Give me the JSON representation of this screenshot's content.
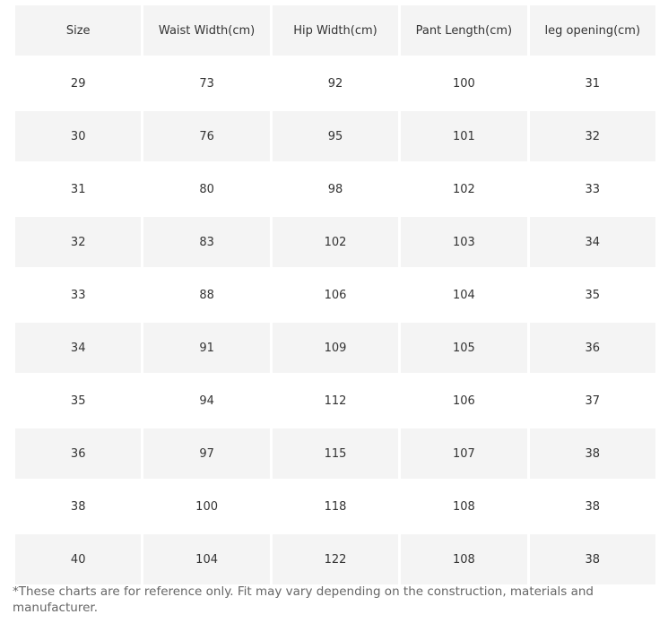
{
  "table": {
    "headers": [
      "Size",
      "Waist Width(cm)",
      "Hip Width(cm)",
      "Pant Length(cm)",
      "leg opening(cm)"
    ],
    "rows": [
      [
        "29",
        "73",
        "92",
        "100",
        "31"
      ],
      [
        "30",
        "76",
        "95",
        "101",
        "32"
      ],
      [
        "31",
        "80",
        "98",
        "102",
        "33"
      ],
      [
        "32",
        "83",
        "102",
        "103",
        "34"
      ],
      [
        "33",
        "88",
        "106",
        "104",
        "35"
      ],
      [
        "34",
        "91",
        "109",
        "105",
        "36"
      ],
      [
        "35",
        "94",
        "112",
        "106",
        "37"
      ],
      [
        "36",
        "97",
        "115",
        "107",
        "38"
      ],
      [
        "38",
        "100",
        "118",
        "108",
        "38"
      ],
      [
        "40",
        "104",
        "122",
        "108",
        "38"
      ]
    ]
  },
  "footnote": "*These charts are for reference only. Fit may vary depending on the construction, materials and manufacturer.",
  "colors": {
    "shaded_row": "#f4f4f4",
    "text": "#333333",
    "footnote_text": "#666666"
  }
}
